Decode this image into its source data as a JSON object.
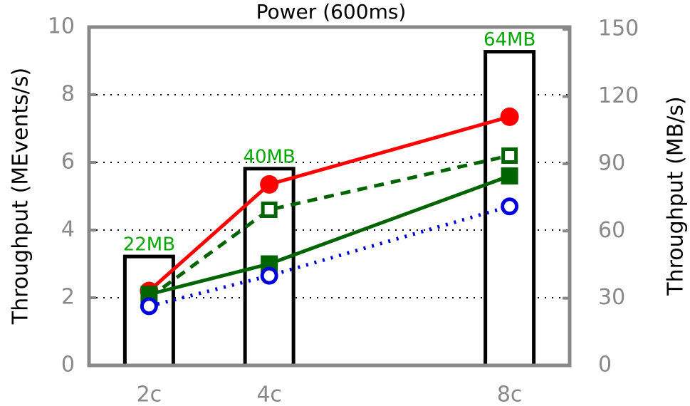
{
  "chart_data": {
    "type": "line",
    "title": "Power (600ms)",
    "ylabel": "Throughput (MEvents/s)",
    "y2label": "Throughput (MB/s)",
    "x": [
      2,
      4,
      8
    ],
    "xlim": [
      1,
      9
    ],
    "xticks": [
      {
        "value": 2,
        "label": "2c"
      },
      {
        "value": 4,
        "label": "4c"
      },
      {
        "value": 8,
        "label": "8c"
      }
    ],
    "ylim": [
      0,
      10
    ],
    "yticks": [
      0,
      2,
      4,
      6,
      8,
      10
    ],
    "y2lim": [
      0,
      151
    ],
    "y2ticks": [
      0,
      30,
      60,
      90,
      120,
      150
    ],
    "grid": true,
    "bars": {
      "axis": "y2",
      "values": [
        48.6,
        87.8,
        140
      ],
      "annotations": [
        "22MB",
        "40MB",
        "64MB"
      ],
      "color": "#000000",
      "annotation_color": "#00a800"
    },
    "series": [
      {
        "color": "#ff0000",
        "values": [
          2.2,
          5.35,
          7.35
        ],
        "dash": "solid",
        "marker": "circle",
        "filled": true
      },
      {
        "color": "#006400",
        "values": [
          2.0,
          4.6,
          6.2
        ],
        "dash": "dashed",
        "marker": "square",
        "filled": false
      },
      {
        "color": "#006400",
        "values": [
          2.1,
          3.0,
          5.6
        ],
        "dash": "solid",
        "marker": "square",
        "filled": true
      },
      {
        "color": "#0000dd",
        "values": [
          1.75,
          2.65,
          4.7
        ],
        "dash": "dotted",
        "marker": "circle",
        "filled": false
      }
    ]
  }
}
